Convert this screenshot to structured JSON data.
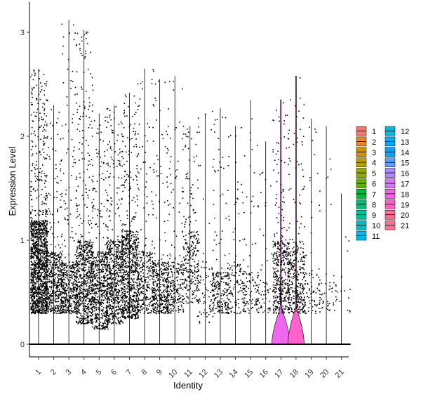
{
  "chart_data": {
    "type": "violin",
    "xlabel": "Identity",
    "ylabel": "Expression Level",
    "categories": [
      "1",
      "2",
      "3",
      "4",
      "5",
      "6",
      "7",
      "8",
      "9",
      "10",
      "11",
      "12",
      "13",
      "14",
      "15",
      "16",
      "17",
      "18",
      "19",
      "20",
      "21"
    ],
    "colors": [
      "#F8766D",
      "#E68613",
      "#CD9600",
      "#ABA300",
      "#7CAE00",
      "#0CB702",
      "#00BE67",
      "#00C19A",
      "#00BFC4",
      "#00B8E7",
      "#00A9FF",
      "#00BFC4",
      "#00B8E7",
      "#00A9FF",
      "#8494FF",
      "#C77CFF",
      "#ED68ED",
      "#FF61CC",
      "#FF68A1",
      "#F8766D",
      "#E76BF3"
    ],
    "legend_colors": [
      "#F8766D",
      "#E88526",
      "#D39200",
      "#B79F00",
      "#93AA00",
      "#5EB300",
      "#00BA38",
      "#00BF74",
      "#00C19F",
      "#00BFC4",
      "#00B9E3",
      "#00B9E3",
      "#00ADFA",
      "#00A5FF",
      "#619CFF",
      "#AE87FF",
      "#DB72FB",
      "#F564E3",
      "#FF61C3",
      "#FF6C91",
      "#FF7396"
    ],
    "max_expression": [
      2.65,
      2.3,
      3.12,
      3.02,
      2.22,
      2.3,
      2.42,
      2.65,
      2.55,
      2.58,
      2.1,
      2.22,
      2.27,
      2.1,
      2.35,
      1.95,
      2.35,
      2.58,
      2.17,
      2.1,
      1.45
    ],
    "dense_band": [
      [
        0.3,
        1.2
      ],
      [
        0.3,
        0.9
      ],
      [
        0.3,
        0.8
      ],
      [
        0.2,
        1.0
      ],
      [
        0.15,
        0.9
      ],
      [
        0.2,
        1.0
      ],
      [
        0.25,
        1.1
      ],
      [
        0.3,
        0.9
      ],
      [
        0.3,
        0.8
      ],
      [
        0.3,
        0.8
      ],
      [
        0.4,
        1.1
      ],
      [
        0.2,
        0.8
      ],
      [
        0.3,
        0.7
      ],
      [
        0.3,
        0.8
      ],
      [
        0.3,
        0.7
      ],
      [
        0.3,
        0.6
      ],
      [
        0.3,
        1.0
      ],
      [
        0.3,
        1.0
      ],
      [
        0.3,
        0.7
      ],
      [
        0.3,
        0.6
      ],
      [
        0.3,
        0.6
      ]
    ],
    "point_counts": [
      1400,
      500,
      450,
      700,
      550,
      650,
      750,
      300,
      380,
      240,
      260,
      90,
      220,
      120,
      120,
      60,
      420,
      320,
      90,
      40,
      20
    ],
    "violin_widths": [
      0,
      0,
      0,
      0,
      0,
      0,
      0,
      0,
      0,
      0,
      0,
      0,
      0,
      0,
      0,
      0,
      0.9,
      0.8,
      0,
      0,
      0
    ],
    "ylim": [
      -0.15,
      3.3
    ],
    "yticks": [
      0,
      1,
      2,
      3
    ],
    "legend_position": "right",
    "legend_columns": 2,
    "grid": false
  }
}
